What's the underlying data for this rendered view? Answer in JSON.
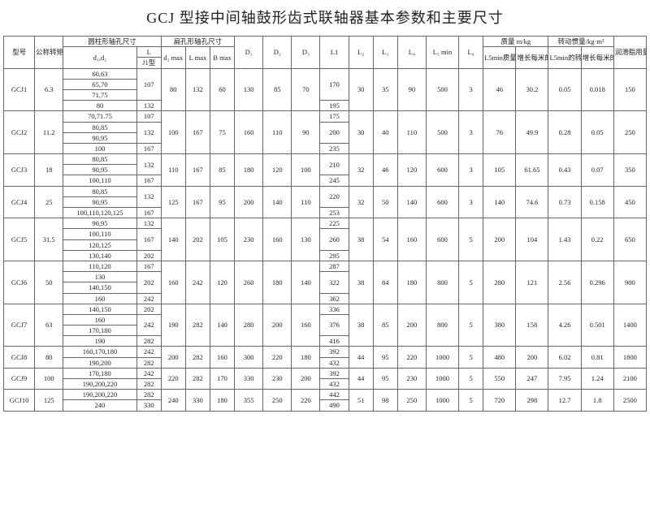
{
  "title": "GCJ 型接中间轴鼓形齿式联轴器基本参数和主要尺寸",
  "headers": {
    "model": "型号",
    "torque": "公称转矩Tn/N·m",
    "cyl_group": "圆柱形轴孔尺寸",
    "d1d2": "d₁,d₂",
    "L_col": "L",
    "J1": "J1型",
    "flat_group": "扁孔形轴孔尺寸",
    "d_max": "d₂ max",
    "L_max": "L max",
    "B_max": "B max",
    "D1": "D₁",
    "D2": "D₂",
    "D3": "D₃",
    "L1": "L1",
    "L2": "L₂",
    "L3": "L₃",
    "L4": "L₄",
    "L5": "L₅ min",
    "L6": "L₆",
    "mass_group": "质量 m/kg",
    "mass_L5": "L5min质量",
    "mass_per_m": "增长每米的质量",
    "inertia_group": "转动惯量/kg·m²",
    "inertia_L5": "L5min的转动惯量",
    "inertia_per_m": "增长每米的转动惯量",
    "lube": "润滑脂用量/ml"
  },
  "rows": [
    {
      "model": "GCJ1",
      "torque": "6.3",
      "d": [
        "60,63",
        "65,70",
        "71,75",
        "80"
      ],
      "L": [
        "107",
        "132"
      ],
      "Ls": [
        3,
        1
      ],
      "dmax": "80",
      "lmax": "132",
      "bmax": "60",
      "D1": "130",
      "D2": "85",
      "D3": "70",
      "L1": [
        "170",
        "195"
      ],
      "L1s": [
        3,
        1
      ],
      "L2": "30",
      "L3": "35",
      "L4": "90",
      "L5": "500",
      "L6": "3",
      "m1": "46",
      "m2": "30.2",
      "i1": "0.05",
      "i2": "0.018",
      "lube": "150"
    },
    {
      "model": "GCJ2",
      "torque": "11.2",
      "d": [
        "70,71.75",
        "80,85",
        "90,95",
        "100"
      ],
      "L": [
        "107",
        "132",
        "167"
      ],
      "Ls": [
        1,
        2,
        1
      ],
      "dmax": "100",
      "lmax": "167",
      "bmax": "75",
      "D1": "160",
      "D2": "110",
      "D3": "90",
      "L1": [
        "175",
        "200",
        "235"
      ],
      "L1s": [
        1,
        2,
        1
      ],
      "L2": "30",
      "L3": "40",
      "L4": "110",
      "L5": "500",
      "L6": "3",
      "m1": "76",
      "m2": "49.9",
      "i1": "0.28",
      "i2": "0.05",
      "lube": "250"
    },
    {
      "model": "GCJ3",
      "torque": "18",
      "d": [
        "80,85",
        "90,95",
        "100,110"
      ],
      "L": [
        "132",
        "167"
      ],
      "Ls": [
        2,
        1
      ],
      "dmax": "110",
      "lmax": "167",
      "bmax": "85",
      "D1": "180",
      "D2": "120",
      "D3": "100",
      "L1": [
        "210",
        "245"
      ],
      "L1s": [
        2,
        1
      ],
      "L2": "32",
      "L3": "46",
      "L4": "120",
      "L5": "600",
      "L6": "3",
      "m1": "105",
      "m2": "61.65",
      "i1": "0.43",
      "i2": "0.07",
      "lube": "350"
    },
    {
      "model": "GCJ4",
      "torque": "25",
      "d": [
        "80,85",
        "90,95",
        "100,110,120,125"
      ],
      "L": [
        "132",
        "167"
      ],
      "Ls": [
        2,
        1
      ],
      "dmax": "125",
      "lmax": "167",
      "bmax": "95",
      "D1": "200",
      "D2": "140",
      "D3": "110",
      "L1": [
        "220",
        "253"
      ],
      "L1s": [
        2,
        1
      ],
      "L2": "32",
      "L3": "50",
      "L4": "140",
      "L5": "600",
      "L6": "3",
      "m1": "140",
      "m2": "74.6",
      "i1": "0.73",
      "i2": "0.158",
      "lube": "450"
    },
    {
      "model": "GCJ5",
      "torque": "31.5",
      "d": [
        "90,95",
        "100,110",
        "120,125",
        "130,140"
      ],
      "L": [
        "132",
        "167",
        "202"
      ],
      "Ls": [
        1,
        2,
        1
      ],
      "dmax": "140",
      "lmax": "202",
      "bmax": "105",
      "D1": "230",
      "D2": "160",
      "D3": "130",
      "L1": [
        "225",
        "260",
        "295"
      ],
      "L1s": [
        1,
        2,
        1
      ],
      "L2": "38",
      "L3": "54",
      "L4": "160",
      "L5": "600",
      "L6": "5",
      "m1": "200",
      "m2": "104",
      "i1": "1.43",
      "i2": "0.22",
      "lube": "650"
    },
    {
      "model": "GCJ6",
      "torque": "50",
      "d": [
        "110,120",
        "130",
        "140,150",
        "160"
      ],
      "L": [
        "167",
        "202",
        "242"
      ],
      "Ls": [
        1,
        2,
        1
      ],
      "dmax": "160",
      "lmax": "242",
      "bmax": "120",
      "D1": "260",
      "D2": "180",
      "D3": "140",
      "L1": [
        "287",
        "322",
        "362"
      ],
      "L1s": [
        1,
        2,
        1
      ],
      "L2": "38",
      "L3": "84",
      "L4": "180",
      "L5": "800",
      "L6": "5",
      "m1": "280",
      "m2": "121",
      "i1": "2.56",
      "i2": "0.296",
      "lube": "900"
    },
    {
      "model": "GCJ7",
      "torque": "63",
      "d": [
        "140,150",
        "160",
        "170,180",
        "190"
      ],
      "L": [
        "202",
        "242",
        "282"
      ],
      "Ls": [
        1,
        2,
        1
      ],
      "dmax": "190",
      "lmax": "282",
      "bmax": "140",
      "D1": "280",
      "D2": "200",
      "D3": "160",
      "L1": [
        "336",
        "376",
        "416"
      ],
      "L1s": [
        1,
        2,
        1
      ],
      "L2": "38",
      "L3": "85",
      "L4": "200",
      "L5": "800",
      "L6": "5",
      "m1": "380",
      "m2": "158",
      "i1": "4.26",
      "i2": "0.501",
      "lube": "1400"
    },
    {
      "model": "GCJ8",
      "torque": "80",
      "d": [
        "160,170,180",
        "190,200"
      ],
      "L": [
        "242",
        "282"
      ],
      "Ls": [
        1,
        1
      ],
      "dmax": "200",
      "lmax": "282",
      "bmax": "160",
      "D1": "300",
      "D2": "220",
      "D3": "180",
      "L1": [
        "392",
        "432"
      ],
      "L1s": [
        1,
        1
      ],
      "L2": "44",
      "L3": "95",
      "L4": "220",
      "L5": "1000",
      "L6": "5",
      "m1": "480",
      "m2": "200",
      "i1": "6.02",
      "i2": "0.81",
      "lube": "1800"
    },
    {
      "model": "GCJ9",
      "torque": "100",
      "d": [
        "170,180",
        "190,200,220"
      ],
      "L": [
        "242",
        "282"
      ],
      "Ls": [
        1,
        1
      ],
      "dmax": "220",
      "lmax": "282",
      "bmax": "170",
      "D1": "330",
      "D2": "230",
      "D3": "200",
      "L1": [
        "392",
        "432"
      ],
      "L1s": [
        1,
        1
      ],
      "L2": "44",
      "L3": "95",
      "L4": "230",
      "L5": "1000",
      "L6": "5",
      "m1": "550",
      "m2": "247",
      "i1": "7.95",
      "i2": "1.24",
      "lube": "2100"
    },
    {
      "model": "GCJ10",
      "torque": "125",
      "d": [
        "190,200,220",
        "240"
      ],
      "L": [
        "282",
        "330"
      ],
      "Ls": [
        1,
        1
      ],
      "dmax": "240",
      "lmax": "330",
      "bmax": "180",
      "D1": "355",
      "D2": "250",
      "D3": "220",
      "L1": [
        "442",
        "490"
      ],
      "L1s": [
        1,
        1
      ],
      "L2": "51",
      "L3": "98",
      "L4": "250",
      "L5": "1000",
      "L6": "5",
      "m1": "720",
      "m2": "298",
      "i1": "12.7",
      "i2": "1.8",
      "lube": "2500"
    }
  ]
}
